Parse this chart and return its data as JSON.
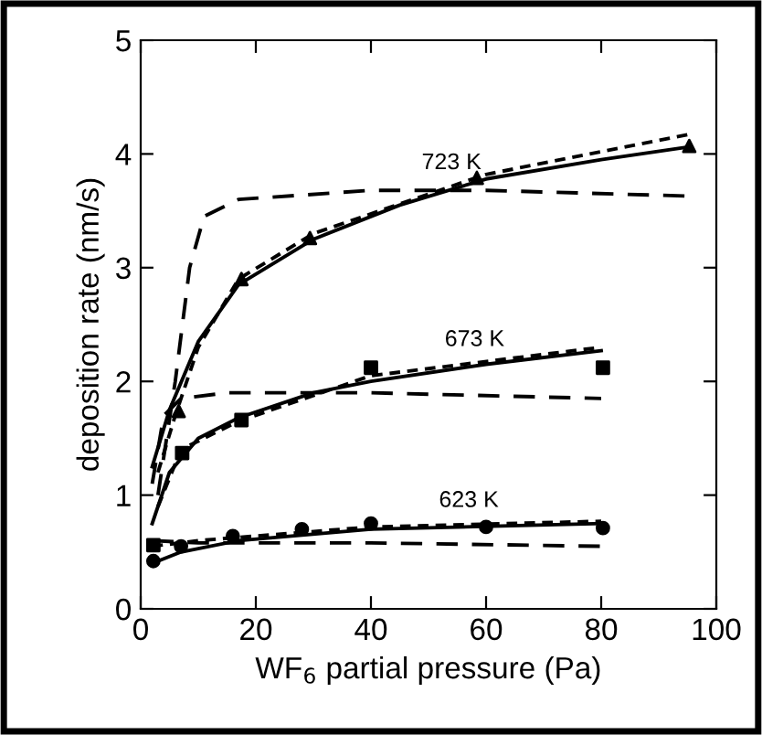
{
  "chart_data": {
    "type": "line",
    "xlabel": "WF$_{6}$ partial pressure (Pa)",
    "ylabel": "deposition rate (nm/s)",
    "xlim": [
      0,
      100
    ],
    "ylim": [
      0,
      5
    ],
    "xticks": [
      0,
      20,
      40,
      60,
      80,
      100
    ],
    "yticks": [
      0,
      1,
      2,
      3,
      4,
      5
    ],
    "grid": false,
    "legend": false,
    "series": [
      {
        "type": "scatter",
        "marker": "triangle",
        "color": "#000000",
        "x": [
          6.6,
          17.5,
          29.4,
          58.4,
          95.3
        ],
        "values": [
          1.74,
          2.9,
          3.26,
          3.79,
          4.07
        ]
      },
      {
        "line_style": "solid",
        "color": "#000000",
        "x": [
          2,
          5,
          10,
          17,
          30,
          45,
          60,
          80,
          95
        ],
        "values": [
          1.25,
          1.75,
          2.35,
          2.85,
          3.25,
          3.55,
          3.78,
          3.95,
          4.06
        ]
      },
      {
        "line_style": "dotted",
        "color": "#000000",
        "x": [
          3,
          6,
          10,
          17,
          30,
          60,
          95
        ],
        "values": [
          1.2,
          1.7,
          2.3,
          2.9,
          3.3,
          3.82,
          4.17
        ]
      },
      {
        "line_style": "dashed",
        "color": "#000000",
        "x": [
          3,
          6,
          8.5,
          11,
          17,
          40,
          60,
          95
        ],
        "values": [
          1.0,
          2.0,
          3.0,
          3.45,
          3.6,
          3.68,
          3.68,
          3.63
        ]
      },
      {
        "type": "scatter",
        "marker": "square",
        "color": "#000000",
        "x": [
          7.2,
          17.5,
          40,
          80.3,
          2.2
        ],
        "values": [
          1.37,
          1.66,
          2.12,
          2.12,
          0.56
        ]
      },
      {
        "line_style": "solid",
        "color": "#000000",
        "x": [
          2,
          5,
          10,
          17,
          30,
          40,
          60,
          80
        ],
        "values": [
          0.75,
          1.2,
          1.5,
          1.68,
          1.9,
          2.0,
          2.15,
          2.27
        ]
      },
      {
        "line_style": "dotted",
        "color": "#000000",
        "x": [
          3,
          7,
          17,
          40,
          80
        ],
        "values": [
          0.9,
          1.4,
          1.65,
          2.05,
          2.3
        ]
      },
      {
        "line_style": "dashed",
        "color": "#000000",
        "x": [
          2,
          4,
          7,
          15,
          40,
          80
        ],
        "values": [
          1.1,
          1.7,
          1.85,
          1.9,
          1.9,
          1.85
        ]
      },
      {
        "type": "scatter",
        "marker": "circle",
        "color": "#000000",
        "x": [
          2.2,
          7,
          16,
          28,
          40,
          60,
          80.3
        ],
        "values": [
          0.42,
          0.55,
          0.64,
          0.7,
          0.75,
          0.72,
          0.71
        ]
      },
      {
        "line_style": "solid",
        "color": "#000000",
        "x": [
          2,
          7,
          17,
          40,
          80
        ],
        "values": [
          0.4,
          0.5,
          0.6,
          0.7,
          0.75
        ]
      },
      {
        "line_style": "dotted",
        "color": "#000000",
        "x": [
          2,
          10,
          40,
          80
        ],
        "values": [
          0.55,
          0.6,
          0.72,
          0.77
        ]
      },
      {
        "line_style": "dashed",
        "color": "#000000",
        "x": [
          2,
          10,
          40,
          80
        ],
        "values": [
          0.6,
          0.58,
          0.58,
          0.55
        ]
      }
    ],
    "annotations": [
      {
        "text": "723 K",
        "x": 54,
        "y": 3.69
      },
      {
        "text": "673 K",
        "x": 58,
        "y": 2.135
      },
      {
        "text": "623 K",
        "x": 57,
        "y": 0.72
      }
    ]
  }
}
